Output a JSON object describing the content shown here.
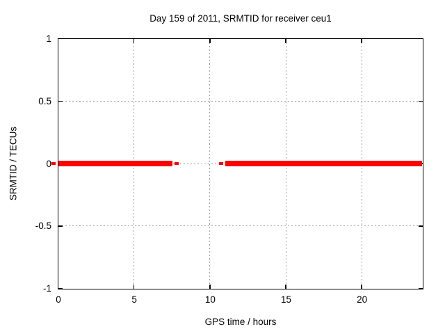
{
  "chart_data": {
    "type": "line",
    "title": "Day 159 of 2011, SRMTID for receiver ceu1",
    "xlabel": "GPS time / hours",
    "ylabel": "SRMTID / TECUs",
    "xlim": [
      0,
      24
    ],
    "ylim": [
      -1,
      1
    ],
    "x_ticks": [
      0,
      5,
      10,
      15,
      20
    ],
    "y_ticks": [
      1,
      0.5,
      0,
      -0.5,
      -1
    ],
    "grid": true,
    "legend": false,
    "series": [
      {
        "name": "SRMTID",
        "color": "#ff0000",
        "style": "thick horizontal line at y = 0 with gap",
        "segments": [
          {
            "x_start": 0,
            "x_end": 7.55,
            "y": 0
          },
          {
            "x_start": 11.0,
            "x_end": 24,
            "y": 0
          }
        ],
        "isolated_points": [
          {
            "x": -0.3,
            "y": 0
          },
          {
            "x": 7.8,
            "y": 0
          },
          {
            "x": 10.75,
            "y": 0
          }
        ]
      }
    ]
  },
  "colors": {
    "background": "#ffffff",
    "axis": "#000000",
    "grid": "#a0a0a0",
    "series": "#ff0000",
    "text": "#000000"
  }
}
